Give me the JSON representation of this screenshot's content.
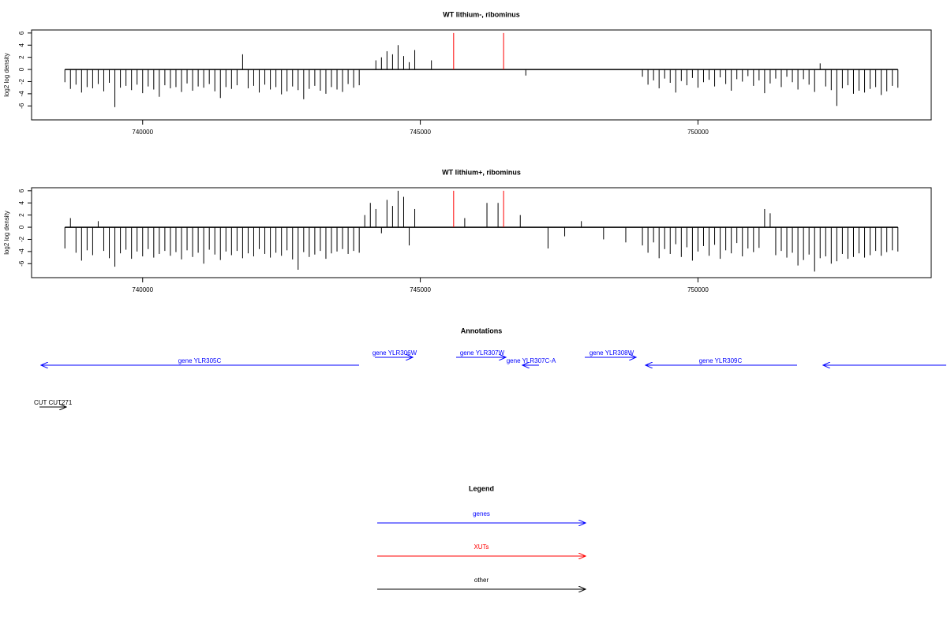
{
  "chart_data": [
    {
      "type": "bar",
      "title": "WT lithium-, ribominus",
      "ylabel": "log2 log density",
      "xlim": [
        738000,
        754200
      ],
      "xticks": [
        740000,
        745000,
        750000
      ],
      "ylim": [
        -8.3,
        6.5
      ],
      "yticks": [
        -6,
        -4,
        -2,
        0,
        2,
        4,
        6
      ],
      "series": [
        {
          "color": "#000000",
          "x": [
            738600,
            738700,
            738800,
            738900,
            739000,
            739100,
            739200,
            739300,
            739400,
            739500,
            739600,
            739700,
            739800,
            739900,
            740000,
            740100,
            740200,
            740300,
            740400,
            740500,
            740600,
            740700,
            740800,
            740900,
            741000,
            741100,
            741200,
            741300,
            741400,
            741500,
            741600,
            741700,
            741800,
            741900,
            742000,
            742100,
            742200,
            742300,
            742400,
            742500,
            742600,
            742700,
            742800,
            742900,
            743000,
            743100,
            743200,
            743300,
            743400,
            743500,
            743600,
            743700,
            743800,
            743900,
            744200,
            744300,
            744400,
            744500,
            744600,
            744700,
            744800,
            744900,
            745200,
            746900,
            749000,
            749100,
            749200,
            749300,
            749400,
            749500,
            749600,
            749700,
            749800,
            749900,
            750000,
            750100,
            750200,
            750300,
            750400,
            750500,
            750600,
            750700,
            750800,
            750900,
            751000,
            751100,
            751200,
            751300,
            751400,
            751500,
            751600,
            751700,
            751800,
            751900,
            752000,
            752100,
            752200,
            752300,
            752400,
            752500,
            752600,
            752700,
            752800,
            752900,
            753000,
            753100,
            753200,
            753300,
            753400,
            753500,
            753600
          ],
          "values": [
            -2.1,
            -3.2,
            -2.5,
            -3.8,
            -2.9,
            -3.1,
            -2.4,
            -3.6,
            -2.2,
            -6.2,
            -3.0,
            -2.7,
            -3.4,
            -2.5,
            -3.9,
            -2.8,
            -3.3,
            -4.5,
            -2.6,
            -3.1,
            -2.9,
            -3.7,
            -2.3,
            -3.5,
            -2.8,
            -3.0,
            -2.4,
            -3.6,
            -4.7,
            -2.9,
            -3.2,
            -2.6,
            2.5,
            -3.1,
            -2.7,
            -3.8,
            -2.5,
            -3.3,
            -2.9,
            -4.1,
            -3.6,
            -2.8,
            -3.4,
            -4.9,
            -3.2,
            -2.7,
            -3.5,
            -4.0,
            -2.9,
            -3.3,
            -3.7,
            -2.4,
            -3.0,
            -2.6,
            1.5,
            2.0,
            3.0,
            2.5,
            4.0,
            2.2,
            1.2,
            3.2,
            1.5,
            -1.0,
            -1.2,
            -2.5,
            -1.8,
            -3.1,
            -1.5,
            -2.2,
            -3.8,
            -1.9,
            -2.6,
            -1.4,
            -3.0,
            -2.1,
            -1.7,
            -2.8,
            -1.3,
            -2.4,
            -3.5,
            -1.6,
            -2.0,
            -1.1,
            -2.7,
            -1.8,
            -3.9,
            -2.3,
            -1.5,
            -2.9,
            -1.2,
            -2.1,
            -3.3,
            -1.6,
            -2.5,
            -3.7,
            1.0,
            -2.8,
            -3.4,
            -6.0,
            -3.1,
            -2.6,
            -4.0,
            -3.5,
            -3.8,
            -3.2,
            -2.9,
            -4.2,
            -3.6,
            -2.7,
            -3.0
          ]
        },
        {
          "color": "#ff0000",
          "x": [
            745600,
            746500
          ],
          "values": [
            6,
            6
          ]
        }
      ]
    },
    {
      "type": "bar",
      "title": "WT lithium+, ribominus",
      "ylabel": "log2 log density",
      "xlim": [
        738000,
        754200
      ],
      "xticks": [
        740000,
        745000,
        750000
      ],
      "ylim": [
        -8.3,
        6.5
      ],
      "yticks": [
        -6,
        -4,
        -2,
        0,
        2,
        4,
        6
      ],
      "series": [
        {
          "color": "#000000",
          "x": [
            738600,
            738700,
            738800,
            738900,
            739000,
            739100,
            739200,
            739300,
            739400,
            739500,
            739600,
            739700,
            739800,
            739900,
            740000,
            740100,
            740200,
            740300,
            740400,
            740500,
            740600,
            740700,
            740800,
            740900,
            741000,
            741100,
            741200,
            741300,
            741400,
            741500,
            741600,
            741700,
            741800,
            741900,
            742000,
            742100,
            742200,
            742300,
            742400,
            742500,
            742600,
            742700,
            742800,
            742900,
            743000,
            743100,
            743200,
            743300,
            743400,
            743500,
            743600,
            743700,
            743800,
            743900,
            744000,
            744100,
            744200,
            744300,
            744400,
            744500,
            744600,
            744700,
            744800,
            744900,
            745800,
            746200,
            746400,
            746800,
            747300,
            747600,
            747900,
            748300,
            748700,
            749000,
            749100,
            749200,
            749300,
            749400,
            749500,
            749600,
            749700,
            749800,
            749900,
            750000,
            750100,
            750200,
            750300,
            750400,
            750500,
            750600,
            750700,
            750800,
            750900,
            751000,
            751100,
            751200,
            751300,
            751400,
            751500,
            751600,
            751700,
            751800,
            751900,
            752000,
            752100,
            752200,
            752300,
            752400,
            752500,
            752600,
            752700,
            752800,
            752900,
            753000,
            753100,
            753200,
            753300,
            753400,
            753500,
            753600
          ],
          "values": [
            -3.5,
            1.5,
            -4.2,
            -5.5,
            -3.8,
            -4.6,
            1.0,
            -3.9,
            -5.1,
            -6.5,
            -4.3,
            -3.7,
            -5.2,
            -4.0,
            -4.8,
            -3.6,
            -5.0,
            -4.4,
            -3.9,
            -4.7,
            -4.1,
            -5.3,
            -3.8,
            -4.9,
            -4.2,
            -6.0,
            -3.7,
            -4.5,
            -5.4,
            -4.0,
            -4.6,
            -3.9,
            -5.1,
            -4.3,
            -4.8,
            -3.6,
            -4.4,
            -5.0,
            -4.2,
            -4.7,
            -3.8,
            -5.3,
            -7.0,
            -4.1,
            -4.9,
            -4.5,
            -3.9,
            -5.2,
            -4.3,
            -4.0,
            -3.6,
            -4.4,
            -3.9,
            -4.2,
            2.0,
            4.0,
            3.0,
            -1.0,
            4.5,
            3.5,
            6.0,
            5.0,
            -3.0,
            3.0,
            1.5,
            4.0,
            4.0,
            2.0,
            -3.5,
            -1.5,
            1.0,
            -2.0,
            -2.5,
            -3.0,
            -4.2,
            -2.5,
            -5.1,
            -3.6,
            -4.4,
            -2.8,
            -4.9,
            -3.3,
            -5.5,
            -4.0,
            -3.1,
            -4.7,
            -2.9,
            -5.2,
            -3.8,
            -4.3,
            -2.6,
            -4.8,
            -3.5,
            -4.1,
            -3.4,
            3.0,
            2.3,
            -4.6,
            -3.9,
            -5.0,
            -4.2,
            -6.3,
            -5.4,
            -4.5,
            -7.3,
            -5.1,
            -4.8,
            -6.0,
            -5.6,
            -4.4,
            -5.2,
            -4.9,
            -4.3,
            -5.0,
            -4.6,
            -3.9,
            -4.7,
            -4.1,
            -3.8,
            -4.0
          ]
        },
        {
          "color": "#ff0000",
          "x": [
            745600,
            746500
          ],
          "values": [
            6,
            6
          ]
        }
      ]
    }
  ],
  "annotations": {
    "title": "Annotations",
    "genes": [
      "gene YLR305C",
      "gene YLR306W",
      "gene YLR307W",
      "gene YLR307C-A",
      "gene YLR308W",
      "gene YLR309C"
    ],
    "other": [
      "CUT CUT271"
    ]
  },
  "legend": {
    "title": "Legend",
    "items": [
      "genes",
      "XUTs",
      "other"
    ]
  }
}
